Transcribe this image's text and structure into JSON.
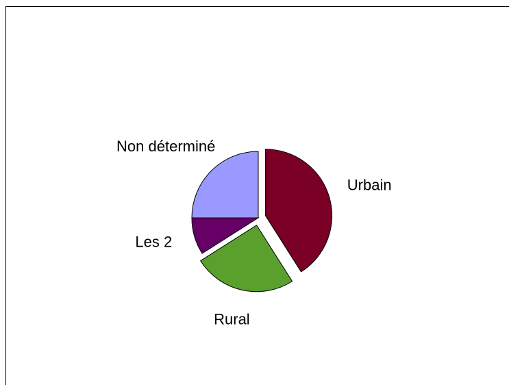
{
  "chart_data": {
    "type": "pie",
    "title": "",
    "start_angle_deg": 0,
    "direction": "clockwise",
    "legend": "none",
    "slices": [
      {
        "label": "Urbain",
        "value": 41,
        "color": "#7a0025",
        "exploded": true
      },
      {
        "label": "Rural",
        "value": 25,
        "color": "#5aa02c",
        "exploded": true
      },
      {
        "label": "Les 2",
        "value": 9,
        "color": "#660066",
        "exploded": false
      },
      {
        "label": "Non déterminé",
        "value": 25,
        "color": "#9999ff",
        "exploded": false
      }
    ]
  }
}
